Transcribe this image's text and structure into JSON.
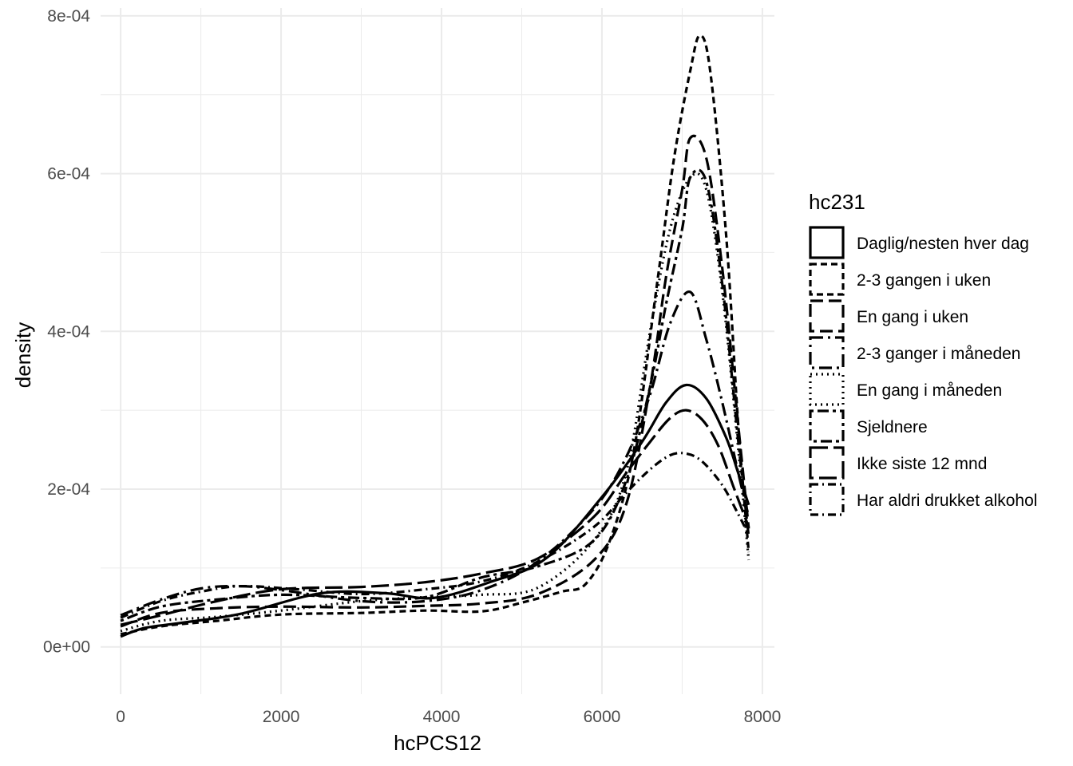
{
  "chart_data": {
    "type": "line",
    "xlabel": "hcPCS12",
    "ylabel": "density",
    "xlim": [
      -250,
      8150
    ],
    "ylim": [
      -6e-05,
      0.00081
    ],
    "x_ticks": [
      0,
      2000,
      4000,
      6000,
      8000
    ],
    "x_tick_labels": [
      "0",
      "2000",
      "4000",
      "6000",
      "8000"
    ],
    "y_ticks": [
      0,
      0.0002,
      0.0004,
      0.0006,
      0.0008
    ],
    "y_tick_labels": [
      "0e+00",
      "2e-04",
      "4e-04",
      "6e-04",
      "8e-04"
    ],
    "grid": true,
    "legend": {
      "title": "hc231",
      "position": "right"
    },
    "colors": {
      "line": "#000000",
      "grid": "#ebebeb",
      "tick_text": "#4d4d4d"
    },
    "series": [
      {
        "name": "Daglig/nesten hver dag",
        "dash": "solid",
        "x": [
          0,
          300,
          800,
          1500,
          2500,
          3300,
          3900,
          4600,
          5300,
          6000,
          6500,
          6800,
          7050,
          7300,
          7550,
          7700,
          7830
        ],
        "y": [
          1.3e-05,
          2.4e-05,
          3.1e-05,
          4.2e-05,
          6.8e-05,
          6.8e-05,
          6.2e-05,
          8.2e-05,
          0.000112,
          0.00019,
          0.00026,
          0.00031,
          0.000332,
          0.000315,
          0.000265,
          0.00022,
          0.00018
        ]
      },
      {
        "name": "2-3 gangen i uken",
        "dash": "8,5",
        "x": [
          0,
          500,
          1200,
          2000,
          3000,
          3800,
          4500,
          5000,
          5500,
          5800,
          6100,
          6400,
          6700,
          6900,
          7100,
          7220,
          7350,
          7550,
          7700,
          7830
        ],
        "y": [
          1.6e-05,
          2.6e-05,
          3.3e-05,
          4.1e-05,
          4.3e-05,
          4.6e-05,
          4.5e-05,
          5.6e-05,
          7e-05,
          8e-05,
          0.000135,
          0.00025,
          0.00047,
          0.00062,
          0.00073,
          0.000775,
          0.00073,
          0.00052,
          0.00028,
          0.00012
        ]
      },
      {
        "name": "En gang i uken",
        "dash": "16,7",
        "x": [
          0,
          500,
          1200,
          2000,
          3000,
          3800,
          4500,
          5200,
          5900,
          6300,
          6600,
          6800,
          7000,
          7100,
          7300,
          7500,
          7700,
          7830
        ],
        "y": [
          2.6e-05,
          4.3e-05,
          4.9e-05,
          5.1e-05,
          5e-05,
          5.2e-05,
          5.5e-05,
          6.7e-05,
          0.00011,
          0.00018,
          0.00033,
          0.00047,
          0.00058,
          0.000645,
          0.00062,
          0.00048,
          0.00028,
          0.00015
        ]
      },
      {
        "name": "2-3 ganger i måneden",
        "dash": "16,6,3,6",
        "x": [
          0,
          500,
          1000,
          1500,
          2000,
          3000,
          3800,
          4500,
          5200,
          5900,
          6300,
          6600,
          6850,
          7100,
          7300,
          7500,
          7700,
          7830
        ],
        "y": [
          4e-05,
          6e-05,
          7.4e-05,
          7.7e-05,
          7.2e-05,
          5.8e-05,
          5.8e-05,
          7.2e-05,
          0.000108,
          0.000175,
          0.00024,
          0.00032,
          0.00041,
          0.00045,
          0.00039,
          0.00031,
          0.00022,
          0.000165
        ]
      },
      {
        "name": "En gang i måneden",
        "dash": "2,5",
        "x": [
          0,
          500,
          1200,
          2000,
          3000,
          3800,
          4500,
          5200,
          5900,
          6300,
          6600,
          6850,
          7100,
          7300,
          7500,
          7700,
          7830
        ],
        "y": [
          2e-05,
          3.3e-05,
          3.8e-05,
          4.6e-05,
          5.8e-05,
          6.3e-05,
          6.6e-05,
          7.5e-05,
          0.000135,
          0.00022,
          0.0004,
          0.00053,
          0.000595,
          0.00058,
          0.00045,
          0.00025,
          0.00011
        ]
      },
      {
        "name": "Sjeldnere",
        "dash": "4,5,14,5",
        "x": [
          0,
          500,
          1200,
          2000,
          3000,
          3800,
          4500,
          5200,
          5900,
          6300,
          6600,
          6800,
          7000,
          7100,
          7300,
          7500,
          7700,
          7830
        ],
        "y": [
          3.3e-05,
          5.1e-05,
          6e-05,
          6.6e-05,
          6.2e-05,
          6.3e-05,
          8.8e-05,
          0.000102,
          0.000135,
          0.00021,
          0.00033,
          0.000435,
          0.00053,
          0.000595,
          0.00059,
          0.00046,
          0.00026,
          0.00014
        ]
      },
      {
        "name": "Ikke siste 12 mnd",
        "dash": "22,7",
        "x": [
          0,
          500,
          1200,
          2000,
          3000,
          3800,
          4500,
          5200,
          5900,
          6300,
          6600,
          6850,
          7050,
          7250,
          7450,
          7650,
          7830
        ],
        "y": [
          2.8e-05,
          4e-05,
          5.8e-05,
          7.3e-05,
          7.6e-05,
          8.2e-05,
          9.3e-05,
          0.000112,
          0.000165,
          0.00022,
          0.00026,
          0.00029,
          0.0003,
          0.000288,
          0.000255,
          0.0002,
          0.000152
        ]
      },
      {
        "name": "Har aldri drukket alkohol",
        "dash": "10,5,2,5",
        "x": [
          0,
          500,
          1000,
          1500,
          2200,
          3000,
          3800,
          4500,
          5200,
          5900,
          6300,
          6600,
          6850,
          7050,
          7250,
          7500,
          7700,
          7830
        ],
        "y": [
          3.7e-05,
          5.8e-05,
          7e-05,
          7.7e-05,
          7.3e-05,
          6.7e-05,
          7.3e-05,
          8.3e-05,
          0.000108,
          0.000152,
          0.000195,
          0.000225,
          0.000243,
          0.000245,
          0.000235,
          0.000205,
          0.000168,
          0.000142
        ]
      }
    ]
  }
}
